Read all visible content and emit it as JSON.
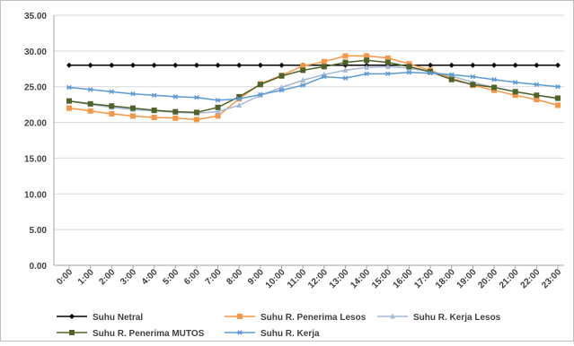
{
  "chart_data": {
    "type": "line",
    "title": "",
    "xlabel": "",
    "ylabel": "",
    "ylim": [
      0,
      35
    ],
    "yticks": [
      "0.00",
      "5.00",
      "10.00",
      "15.00",
      "20.00",
      "25.00",
      "30.00",
      "35.00"
    ],
    "grid": true,
    "legend_position": "bottom",
    "categories": [
      "0:00",
      "1:00",
      "2:00",
      "3:00",
      "4:00",
      "5:00",
      "6:00",
      "7:00",
      "8:00",
      "9:00",
      "10:00",
      "11:00",
      "12:00",
      "13:00",
      "14:00",
      "15:00",
      "16:00",
      "17:00",
      "18:00",
      "19:00",
      "20:00",
      "21:00",
      "22:00",
      "23:00"
    ],
    "series": [
      {
        "name": "Suhu Netral",
        "color": "#000000",
        "marker": "diamond",
        "values": [
          28,
          28,
          28,
          28,
          28,
          28,
          28,
          28,
          28,
          28,
          28,
          28,
          28,
          28,
          28,
          28,
          28,
          28,
          28,
          28,
          28,
          28,
          28,
          28
        ]
      },
      {
        "name": "Suhu R. Penerima Lesos",
        "color": "#f79646",
        "marker": "square",
        "values": [
          22.0,
          21.6,
          21.2,
          20.9,
          20.7,
          20.6,
          20.4,
          20.9,
          23.3,
          25.4,
          26.6,
          27.9,
          28.5,
          29.3,
          29.3,
          29.0,
          28.2,
          27.3,
          26.2,
          25.2,
          24.5,
          23.8,
          23.2,
          22.4
        ]
      },
      {
        "name": "Suhu R. Kerja Lesos",
        "color": "#a5b8d6",
        "marker": "triangle",
        "values": [
          23.0,
          22.5,
          22.1,
          21.8,
          21.6,
          21.4,
          21.3,
          21.5,
          22.4,
          23.8,
          24.9,
          25.9,
          26.7,
          27.3,
          27.7,
          27.8,
          27.6,
          27.1,
          26.5,
          25.6,
          24.9,
          24.3,
          23.8,
          23.3
        ]
      },
      {
        "name": "Suhu R. Penerima MUTOS",
        "color": "#4f6228",
        "marker": "square",
        "values": [
          23.0,
          22.6,
          22.3,
          22.0,
          21.7,
          21.5,
          21.4,
          22.1,
          23.6,
          25.3,
          26.5,
          27.3,
          27.8,
          28.4,
          28.7,
          28.4,
          27.8,
          27.1,
          26.0,
          25.3,
          24.9,
          24.3,
          23.8,
          23.4
        ]
      },
      {
        "name": "Suhu R. Kerja",
        "color": "#5b9bd5",
        "marker": "star",
        "values": [
          24.9,
          24.6,
          24.3,
          24.0,
          23.8,
          23.6,
          23.5,
          23.1,
          23.3,
          23.9,
          24.5,
          25.2,
          26.4,
          26.2,
          26.8,
          26.8,
          27.0,
          26.9,
          26.7,
          26.4,
          26.0,
          25.6,
          25.3,
          25.0
        ]
      }
    ]
  }
}
